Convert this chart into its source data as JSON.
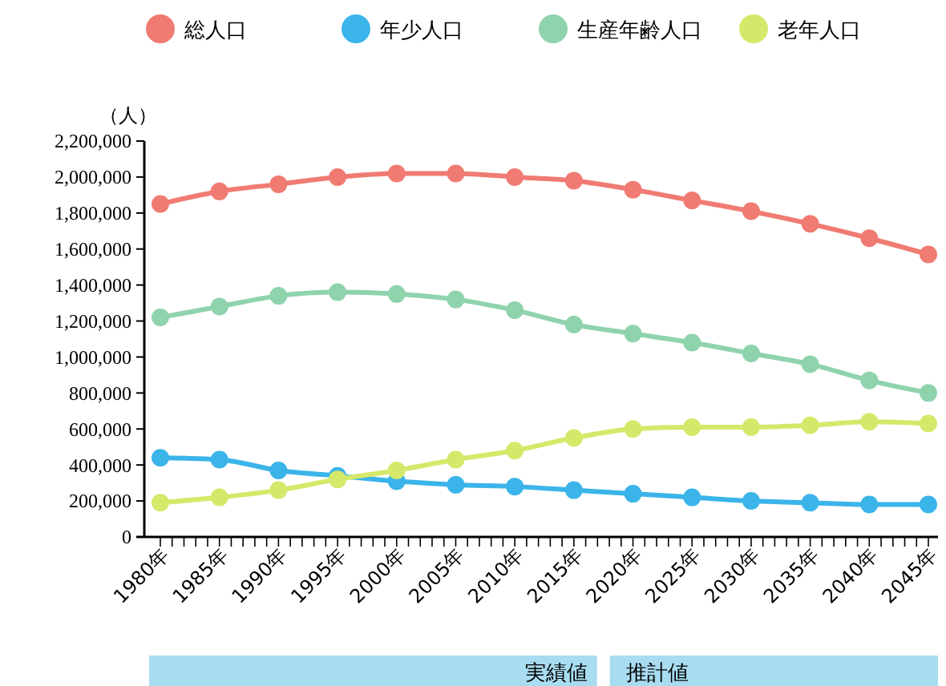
{
  "chart_data": {
    "type": "line",
    "ylabel": "（人）",
    "categories": [
      "1980年",
      "1985年",
      "1990年",
      "1995年",
      "2000年",
      "2005年",
      "2010年",
      "2015年",
      "2020年",
      "2025年",
      "2030年",
      "2035年",
      "2040年",
      "2045年"
    ],
    "series": [
      {
        "name": "総人口",
        "color": "#f07b72",
        "values": [
          1850000,
          1920000,
          1960000,
          2000000,
          2020000,
          2020000,
          2000000,
          1980000,
          1930000,
          1870000,
          1810000,
          1740000,
          1660000,
          1570000
        ]
      },
      {
        "name": "年少人口",
        "color": "#3bb4ea",
        "values": [
          440000,
          430000,
          370000,
          340000,
          310000,
          290000,
          280000,
          260000,
          240000,
          220000,
          200000,
          190000,
          180000,
          180000
        ]
      },
      {
        "name": "生産年齢人口",
        "color": "#8fd3ad",
        "values": [
          1220000,
          1280000,
          1340000,
          1360000,
          1350000,
          1320000,
          1260000,
          1180000,
          1130000,
          1080000,
          1020000,
          960000,
          870000,
          800000
        ]
      },
      {
        "name": "老年人口",
        "color": "#d6e86a",
        "values": [
          190000,
          220000,
          260000,
          320000,
          370000,
          430000,
          480000,
          550000,
          600000,
          610000,
          610000,
          620000,
          640000,
          630000
        ]
      }
    ],
    "ylim": [
      0,
      2200000
    ],
    "yticks": [
      {
        "value": 0,
        "label": "0"
      },
      {
        "value": 200000,
        "label": "200,000"
      },
      {
        "value": 400000,
        "label": "400,000"
      },
      {
        "value": 600000,
        "label": "600,000"
      },
      {
        "value": 800000,
        "label": "800,000"
      },
      {
        "value": 1000000,
        "label": "1,000,000"
      },
      {
        "value": 1200000,
        "label": "1,200,000"
      },
      {
        "value": 1400000,
        "label": "1,400,000"
      },
      {
        "value": 1600000,
        "label": "1,600,000"
      },
      {
        "value": 1800000,
        "label": "1,800,000"
      },
      {
        "value": 2000000,
        "label": "2,000,000"
      },
      {
        "value": 2200000,
        "label": "2,200,000"
      }
    ],
    "marker": "circle",
    "legend": "top",
    "grid": false,
    "annotations": [
      "実績値",
      "推計値"
    ]
  }
}
